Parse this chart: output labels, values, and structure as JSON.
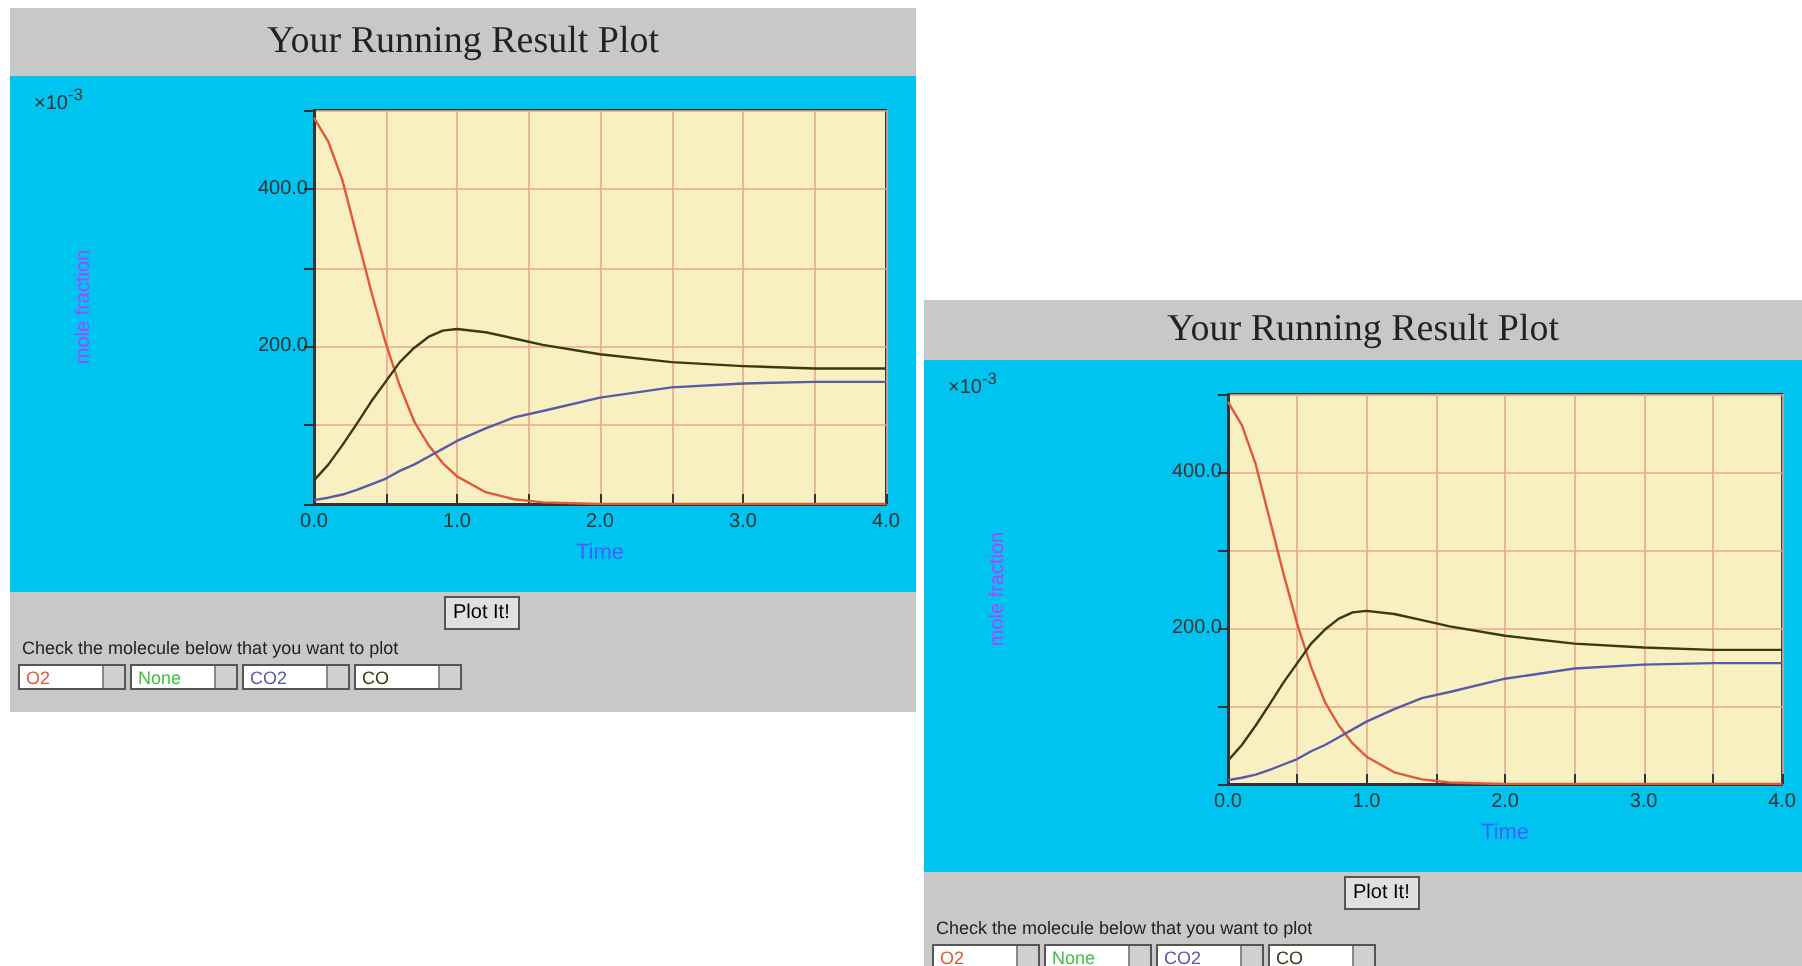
{
  "chart_data": [
    {
      "type": "line",
      "title": "Your Running Result Plot",
      "xlabel": "Time",
      "ylabel": "mole fraction",
      "annotations": [
        "×10$^{-3}$",
        "Plot It!",
        "Check the molecule below that you want to plot",
        "None"
      ],
      "x": [
        0,
        0.1,
        0.2,
        0.3,
        0.4,
        0.5,
        0.6,
        0.7,
        0.8,
        0.9,
        1.0,
        1.2,
        1.4,
        1.6,
        2.0,
        2.5,
        3.0,
        3.5,
        4.0
      ],
      "series": [
        {
          "name": "O2",
          "color": "#e05a3a",
          "values": [
            490,
            460,
            410,
            340,
            270,
            205,
            150,
            105,
            75,
            52,
            35,
            15,
            6,
            2,
            0,
            0,
            0,
            0,
            0
          ]
        },
        {
          "name": "CO2",
          "color": "#5a5aa8",
          "values": [
            5,
            8,
            12,
            18,
            25,
            32,
            42,
            50,
            60,
            70,
            80,
            96,
            110,
            118,
            135,
            148,
            153,
            155,
            155
          ]
        },
        {
          "name": "CO",
          "color": "#3a3a10",
          "values": [
            30,
            50,
            75,
            102,
            130,
            155,
            180,
            198,
            212,
            220,
            222,
            218,
            210,
            202,
            190,
            180,
            175,
            172,
            172
          ]
        }
      ],
      "xlim": [
        0,
        4
      ],
      "xticks": [
        {
          "value": 0,
          "label": "0.0"
        },
        {
          "value": 0.5,
          "label": null
        },
        {
          "value": 1,
          "label": "1.0"
        },
        {
          "value": 1.5,
          "label": null
        },
        {
          "value": 2,
          "label": "2.0"
        },
        {
          "value": 2.5,
          "label": null
        },
        {
          "value": 3,
          "label": "3.0"
        },
        {
          "value": 3.5,
          "label": null
        },
        {
          "value": 4,
          "label": "4.0"
        }
      ],
      "ylim": [
        0,
        500
      ],
      "yticks": [
        {
          "value": 0,
          "label": null
        },
        {
          "value": 100,
          "label": null
        },
        {
          "value": 200,
          "label": "200.0"
        },
        {
          "value": 300,
          "label": null
        },
        {
          "value": 400,
          "label": "400.0"
        },
        {
          "value": 500,
          "label": null
        }
      ],
      "grid": true,
      "legend": "bottom left",
      "marker": "none",
      "line_style": "solid"
    },
    {
      "type": "line",
      "title": "Your Running Result Plot",
      "xlabel": "Time",
      "ylabel": "mole fraction",
      "annotations": [
        "×10$^{-3}$",
        "Plot It!",
        "Check the molecule below that you want to plot",
        "None"
      ],
      "x": [
        0,
        0.1,
        0.2,
        0.3,
        0.4,
        0.5,
        0.6,
        0.7,
        0.8,
        0.9,
        1.0,
        1.2,
        1.4,
        1.6,
        2.0,
        2.5,
        3.0,
        3.5,
        4.0
      ],
      "series": [
        {
          "name": "O2",
          "color": "#e05a3a",
          "values": [
            490,
            460,
            410,
            340,
            270,
            205,
            150,
            105,
            75,
            52,
            35,
            15,
            6,
            2,
            0,
            0,
            0,
            0,
            0
          ]
        },
        {
          "name": "CO2",
          "color": "#5a5aa8",
          "values": [
            5,
            8,
            12,
            18,
            25,
            32,
            42,
            50,
            60,
            70,
            80,
            96,
            110,
            118,
            135,
            148,
            153,
            155,
            155
          ]
        },
        {
          "name": "CO",
          "color": "#3a3a10",
          "values": [
            30,
            50,
            75,
            102,
            130,
            155,
            180,
            198,
            212,
            220,
            222,
            218,
            210,
            202,
            190,
            180,
            175,
            172,
            172
          ]
        }
      ],
      "xlim": [
        0,
        4
      ],
      "xticks": [
        {
          "value": 0,
          "label": "0.0"
        },
        {
          "value": 0.5,
          "label": null
        },
        {
          "value": 1,
          "label": "1.0"
        },
        {
          "value": 1.5,
          "label": null
        },
        {
          "value": 2,
          "label": "2.0"
        },
        {
          "value": 2.5,
          "label": null
        },
        {
          "value": 3,
          "label": "3.0"
        },
        {
          "value": 3.5,
          "label": null
        },
        {
          "value": 4,
          "label": "4.0"
        }
      ],
      "ylim": [
        0,
        500
      ],
      "yticks": [
        {
          "value": 0,
          "label": null
        },
        {
          "value": 100,
          "label": null
        },
        {
          "value": 200,
          "label": "200.0"
        },
        {
          "value": 300,
          "label": null
        },
        {
          "value": 400,
          "label": "400.0"
        },
        {
          "value": 500,
          "label": null
        }
      ],
      "grid": true,
      "legend": "bottom left",
      "marker": "none",
      "line_style": "solid"
    }
  ]
}
